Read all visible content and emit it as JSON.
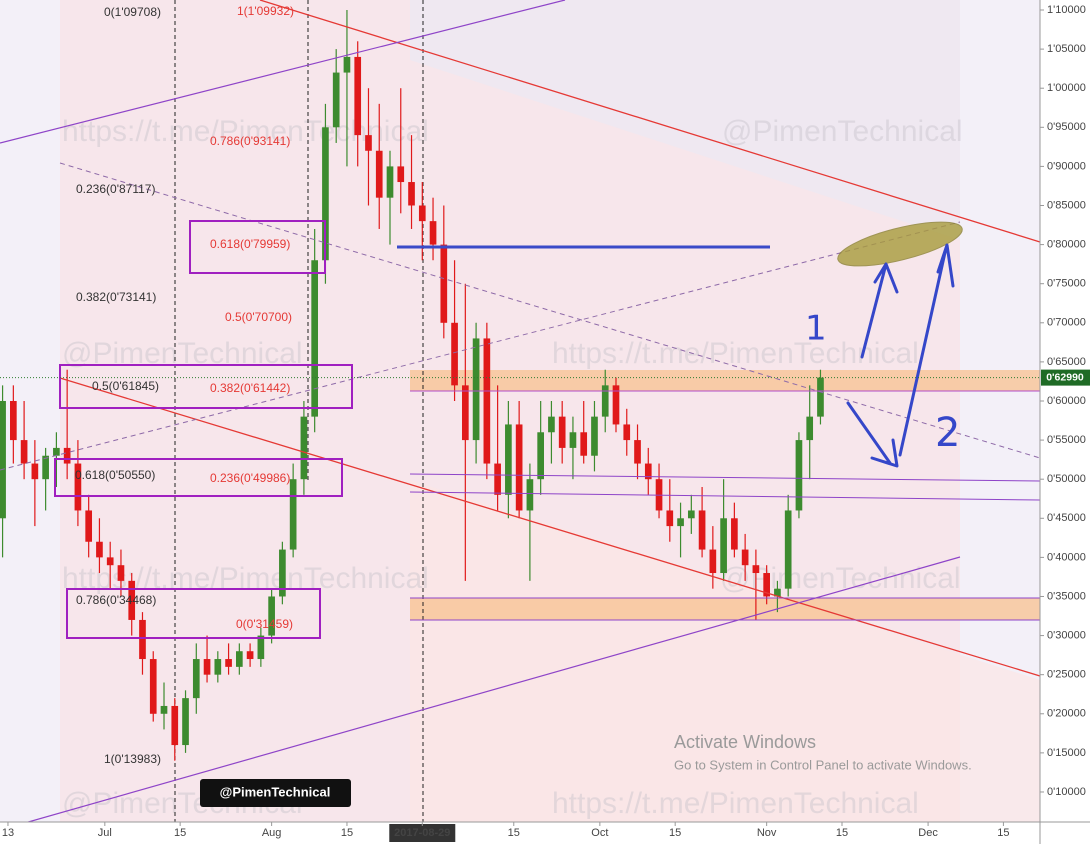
{
  "chart_data": {
    "type": "candlestick",
    "up_color": "#3d8b2f",
    "down_color": "#e0191a",
    "open": [
      0.45,
      0.6,
      0.55,
      0.52,
      0.5,
      0.53,
      0.54,
      0.52,
      0.46,
      0.42,
      0.4,
      0.39,
      0.37,
      0.32,
      0.27,
      0.2,
      0.21,
      0.16,
      0.22,
      0.27,
      0.25,
      0.27,
      0.26,
      0.28,
      0.27,
      0.3,
      0.35,
      0.41,
      0.5,
      0.58,
      0.78,
      0.95,
      1.02,
      1.04,
      0.94,
      0.92,
      0.86,
      0.9,
      0.88,
      0.85,
      0.83,
      0.8,
      0.7,
      0.62,
      0.55,
      0.68,
      0.52,
      0.48,
      0.57,
      0.46,
      0.5,
      0.56,
      0.58,
      0.54,
      0.56,
      0.53,
      0.58,
      0.62,
      0.57,
      0.55,
      0.52,
      0.5,
      0.46,
      0.44,
      0.45,
      0.46,
      0.41,
      0.38,
      0.45,
      0.41,
      0.39,
      0.38,
      0.35,
      0.36,
      0.46,
      0.55,
      0.58
    ],
    "high": [
      0.62,
      0.62,
      0.6,
      0.55,
      0.54,
      0.56,
      0.64,
      0.55,
      0.48,
      0.45,
      0.42,
      0.41,
      0.38,
      0.33,
      0.28,
      0.24,
      0.22,
      0.23,
      0.29,
      0.3,
      0.28,
      0.29,
      0.29,
      0.29,
      0.31,
      0.36,
      0.42,
      0.52,
      0.6,
      0.82,
      0.98,
      1.05,
      1.1,
      1.06,
      1.0,
      0.98,
      0.92,
      1.0,
      0.94,
      0.88,
      0.86,
      0.85,
      0.78,
      0.75,
      0.7,
      0.7,
      0.62,
      0.6,
      0.6,
      0.52,
      0.6,
      0.6,
      0.6,
      0.58,
      0.6,
      0.6,
      0.64,
      0.63,
      0.59,
      0.57,
      0.54,
      0.52,
      0.5,
      0.47,
      0.48,
      0.49,
      0.44,
      0.5,
      0.47,
      0.43,
      0.41,
      0.39,
      0.37,
      0.48,
      0.56,
      0.62,
      0.64
    ],
    "low": [
      0.4,
      0.52,
      0.5,
      0.44,
      0.46,
      0.49,
      0.5,
      0.44,
      0.4,
      0.38,
      0.36,
      0.35,
      0.3,
      0.25,
      0.19,
      0.18,
      0.14,
      0.15,
      0.2,
      0.24,
      0.24,
      0.25,
      0.25,
      0.26,
      0.26,
      0.29,
      0.34,
      0.4,
      0.48,
      0.56,
      0.75,
      0.93,
      0.9,
      0.9,
      0.85,
      0.82,
      0.8,
      0.84,
      0.82,
      0.78,
      0.78,
      0.68,
      0.6,
      0.37,
      0.52,
      0.5,
      0.46,
      0.45,
      0.45,
      0.37,
      0.48,
      0.52,
      0.52,
      0.5,
      0.52,
      0.51,
      0.56,
      0.56,
      0.53,
      0.5,
      0.48,
      0.45,
      0.42,
      0.4,
      0.43,
      0.4,
      0.36,
      0.37,
      0.4,
      0.37,
      0.32,
      0.34,
      0.33,
      0.35,
      0.45,
      0.5,
      0.57
    ],
    "close": [
      0.6,
      0.55,
      0.52,
      0.5,
      0.53,
      0.54,
      0.52,
      0.46,
      0.42,
      0.4,
      0.39,
      0.37,
      0.32,
      0.27,
      0.2,
      0.21,
      0.16,
      0.22,
      0.27,
      0.25,
      0.27,
      0.26,
      0.28,
      0.27,
      0.3,
      0.35,
      0.41,
      0.5,
      0.58,
      0.78,
      0.95,
      1.02,
      1.04,
      0.94,
      0.92,
      0.86,
      0.9,
      0.88,
      0.85,
      0.83,
      0.8,
      0.7,
      0.62,
      0.55,
      0.68,
      0.52,
      0.48,
      0.57,
      0.46,
      0.5,
      0.56,
      0.58,
      0.54,
      0.56,
      0.53,
      0.58,
      0.62,
      0.57,
      0.55,
      0.52,
      0.5,
      0.46,
      0.44,
      0.45,
      0.46,
      0.41,
      0.38,
      0.45,
      0.41,
      0.39,
      0.38,
      0.35,
      0.36,
      0.46,
      0.55,
      0.58,
      0.6299
    ],
    "xlim": [
      -0.24,
      96.4
    ],
    "xticks": [
      {
        "value": 0.5,
        "label": "13"
      },
      {
        "value": 9.5,
        "label": "Jul"
      },
      {
        "value": 16.5,
        "label": "15"
      },
      {
        "value": 25,
        "label": "Aug"
      },
      {
        "value": 32,
        "label": "15"
      },
      {
        "value": 39,
        "label": "2017-08-29"
      },
      {
        "value": 47.5,
        "label": "15"
      },
      {
        "value": 55.5,
        "label": "Oct"
      },
      {
        "value": 62.5,
        "label": "15"
      },
      {
        "value": 71,
        "label": "Nov"
      },
      {
        "value": 78,
        "label": "15"
      },
      {
        "value": 86,
        "label": "Dec"
      },
      {
        "value": 93,
        "label": "15"
      }
    ],
    "ylim": [
      0.0616,
      1.1128
    ],
    "yticks": [
      {
        "value": 1.1,
        "label": "1'10000"
      },
      {
        "value": 1.05,
        "label": "1'05000"
      },
      {
        "value": 1.0,
        "label": "1'00000"
      },
      {
        "value": 0.95,
        "label": "0'95000"
      },
      {
        "value": 0.9,
        "label": "0'90000"
      },
      {
        "value": 0.85,
        "label": "0'85000"
      },
      {
        "value": 0.8,
        "label": "0'80000"
      },
      {
        "value": 0.75,
        "label": "0'75000"
      },
      {
        "value": 0.7,
        "label": "0'70000"
      },
      {
        "value": 0.65,
        "label": "0'65000"
      },
      {
        "value": 0.6,
        "label": "0'60000"
      },
      {
        "value": 0.55,
        "label": "0'55000"
      },
      {
        "value": 0.5,
        "label": "0'50000"
      },
      {
        "value": 0.45,
        "label": "0'45000"
      },
      {
        "value": 0.4,
        "label": "0'40000"
      },
      {
        "value": 0.35,
        "label": "0'35000"
      },
      {
        "value": 0.3,
        "label": "0'30000"
      },
      {
        "value": 0.25,
        "label": "0'25000"
      },
      {
        "value": 0.2,
        "label": "0'20000"
      },
      {
        "value": 0.15,
        "label": "0'15000"
      },
      {
        "value": 0.1,
        "label": "0'10000"
      }
    ],
    "last_price": {
      "value": 0.6299,
      "label": "0'62990"
    },
    "fib_labels": [
      "0(1'09708)",
      "1(1'09932)",
      "0.786(0'93141)",
      "0.236(0'87117)",
      "0.618(0'79959)",
      "0.382(0'73141)",
      "0.5(0'70700)",
      "0.5(0'61845)",
      "0.382(0'61442)",
      "0.618(0'50550)",
      "0.236(0'49986)",
      "0.786(0'34468)",
      "0(0'31459)",
      "1(0'13983)"
    ],
    "watermarks": [
      "https://t.me/PimenTechnical",
      "@PimenTechnical"
    ],
    "badge": "@PimenTechnical",
    "hand_labels": [
      "1",
      "2"
    ],
    "notice_title": "Activate Windows",
    "notice_text": "Go to System in Control Panel to activate Windows."
  }
}
